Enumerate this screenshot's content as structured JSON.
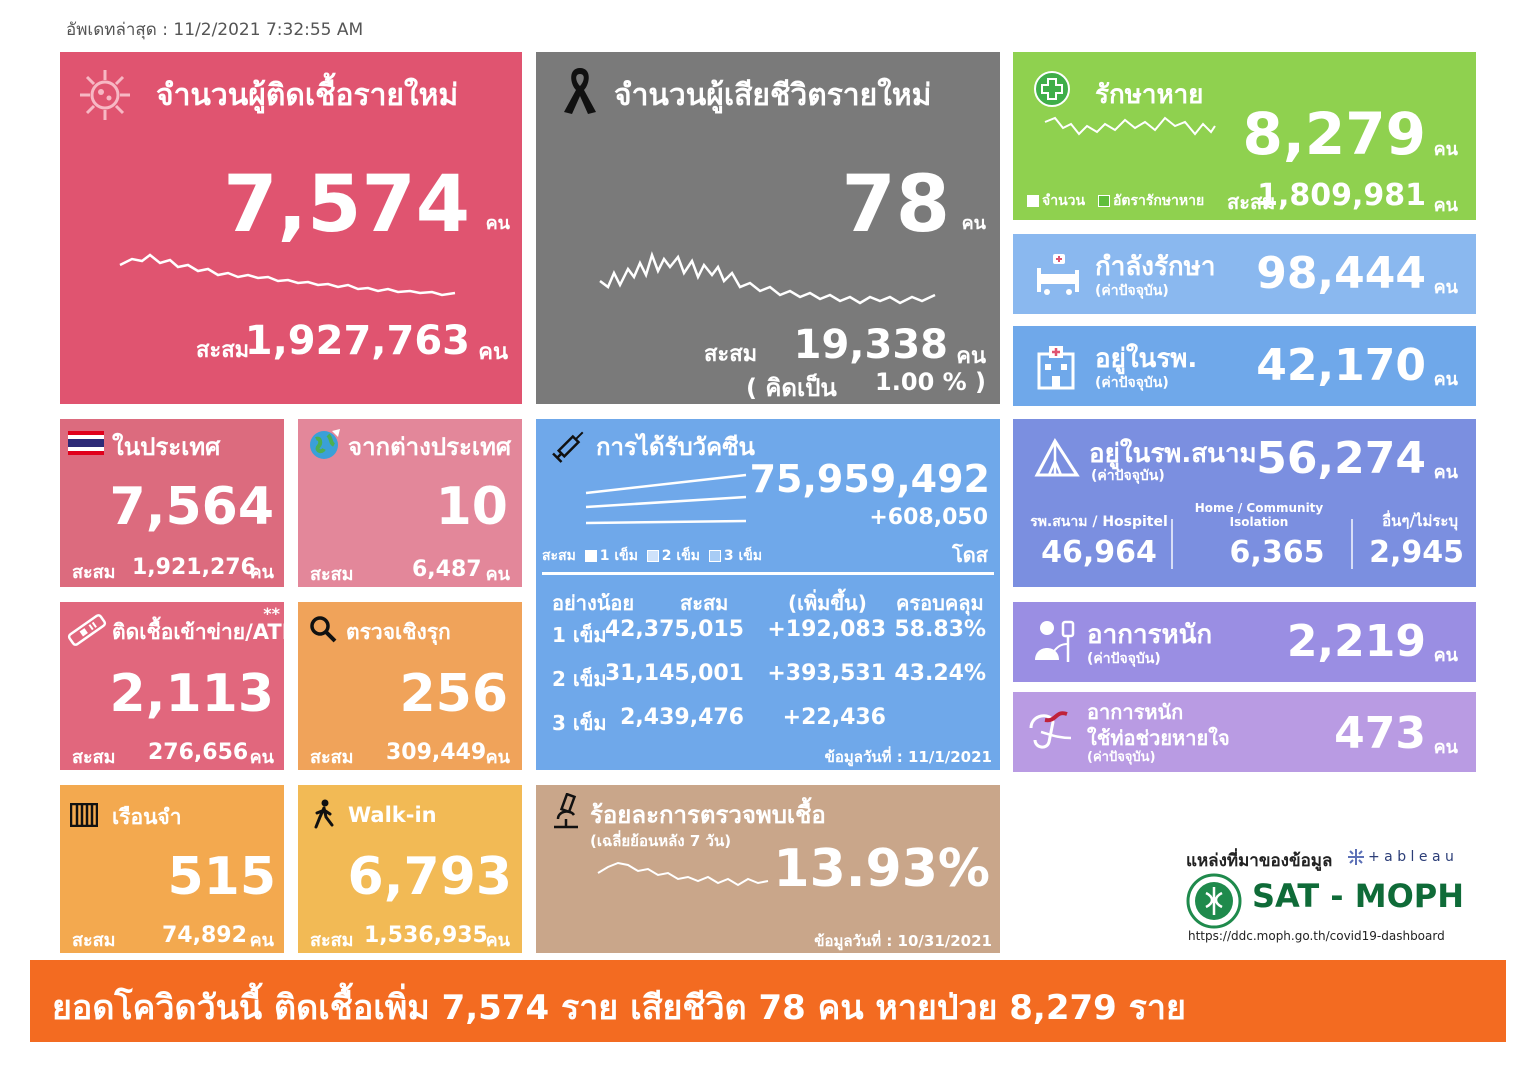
{
  "updated": "อัพเดทล่าสุด : 11/2/2021 7:32:55 AM",
  "new_cases": {
    "title": "จำนวนผู้ติดเชื้อรายใหม่",
    "value": "7,574",
    "unit": "คน",
    "cum_label": "สะสม",
    "cum_value": "1,927,763",
    "cum_unit": "คน",
    "color": "#e05470"
  },
  "new_deaths": {
    "title": "จำนวนผู้เสียชีวิตรายใหม่",
    "value": "78",
    "unit": "คน",
    "cum_label": "สะสม",
    "cum_value": "19,338",
    "cum_unit": "คน",
    "pct_open": "( คิดเป็น",
    "pct_value": "1.00 % )",
    "color": "#7a7a7a"
  },
  "recovered": {
    "title": "รักษาหาย",
    "value": "8,279",
    "unit": "คน",
    "legend_count": "จำนวน",
    "legend_rate": "อัตรารักษาหาย",
    "cum_label": "สะสม",
    "cum_value": "1,809,981",
    "cum_unit": "คน",
    "color": "#8fd14f"
  },
  "treating": {
    "title": "กำลังรักษา",
    "sub": "(ค่าปัจจุบัน)",
    "value": "98,444",
    "unit": "คน",
    "color": "#8ab8ef"
  },
  "hospital": {
    "title": "อยู่ในรพ.",
    "sub": "(ค่าปัจจุบัน)",
    "value": "42,170",
    "unit": "คน",
    "color": "#6fa8ea"
  },
  "field_hospital": {
    "title": "อยู่ในรพ.สนาม",
    "sub": "(ค่าปัจจุบัน)",
    "value": "56,274",
    "unit": "คน",
    "color": "#7b8fe0",
    "col1_label": "รพ.สนาม / Hospitel",
    "col1_value": "46,964",
    "col2_label1": "Home / Community",
    "col2_label2": "Isolation",
    "col2_value": "6,365",
    "col3_label": "อื่นๆ/ไม่ระบุ",
    "col3_value": "2,945"
  },
  "domestic": {
    "title": "ในประเทศ",
    "value": "7,564",
    "cum_label": "สะสม",
    "cum_value": "1,921,276",
    "cum_unit": "คน",
    "color": "#dc6b7e"
  },
  "abroad": {
    "title": "จากต่างประเทศ",
    "value": "10",
    "cum_label": "สะสม",
    "cum_value": "6,487",
    "cum_unit": "คน",
    "color": "#e3879a"
  },
  "atk": {
    "title": "ติดเชื้อเข้าข่าย/ATK",
    "stars": "**",
    "value": "2,113",
    "cum_label": "สะสม",
    "cum_value": "276,656",
    "cum_unit": "คน",
    "color": "#e1677d"
  },
  "proactive": {
    "title": "ตรวจเชิงรุก",
    "value": "256",
    "cum_label": "สะสม",
    "cum_value": "309,449",
    "cum_unit": "คน",
    "color": "#f0a35a"
  },
  "prison": {
    "title": "เรือนจำ",
    "value": "515",
    "cum_label": "สะสม",
    "cum_value": "74,892",
    "cum_unit": "คน",
    "color": "#f3a94f"
  },
  "walkin": {
    "title": "Walk-in",
    "value": "6,793",
    "cum_label": "สะสม",
    "cum_value": "1,536,935",
    "cum_unit": "คน",
    "color": "#f2ba55"
  },
  "vaccine": {
    "title": "การได้รับวัคซีน",
    "total": "75,959,492",
    "delta": "+608,050",
    "dose_unit": "โดส",
    "legend_prefix": "สะสม",
    "legend1": "1 เข็ม",
    "legend2": "2 เข็ม",
    "legend3": "3 เข็ม",
    "headers": {
      "h1": "อย่างน้อย",
      "h2": "สะสม",
      "h3": "(เพิ่มขึ้น)",
      "h4": "ครอบคลุม"
    },
    "rows": [
      {
        "dose": "1 เข็ม",
        "cum": "42,375,015",
        "inc": "+192,083",
        "cov": "58.83%"
      },
      {
        "dose": "2 เข็ม",
        "cum": "31,145,001",
        "inc": "+393,531",
        "cov": "43.24%"
      },
      {
        "dose": "3 เข็ม",
        "cum": "2,439,476",
        "inc": "+22,436",
        "cov": ""
      }
    ],
    "note": "ข้อมูลวันที่ : 11/1/2021",
    "color": "#6fa8ea"
  },
  "positivity": {
    "title": "ร้อยละการตรวจพบเชื้อ",
    "sub": "(เฉลี่ยย้อนหลัง 7 วัน)",
    "value": "13.93%",
    "note": "ข้อมูลวันที่ : 10/31/2021",
    "color": "#c9a68a"
  },
  "severe": {
    "title": "อาการหนัก",
    "sub": "(ค่าปัจจุบัน)",
    "value": "2,219",
    "unit": "คน",
    "color": "#9a8ee3"
  },
  "ventilator": {
    "title1": "อาการหนัก",
    "title2": "ใช้ท่อช่วยหายใจ",
    "sub": "(ค่าปัจจุบัน)",
    "value": "473",
    "unit": "คน",
    "color": "#b99be3"
  },
  "source": {
    "label": "แหล่งที่มาของข้อมูล",
    "tableau": "+ a b l e a u",
    "org": "SAT - MOPH",
    "url": "https://ddc.moph.go.th/covid19-dashboard"
  },
  "banner": "ยอดโควิดวันนี้ ติดเชื้อเพิ่ม 7,574 ราย เสียชีวิต 78 คน หายป่วย 8,279 ราย"
}
